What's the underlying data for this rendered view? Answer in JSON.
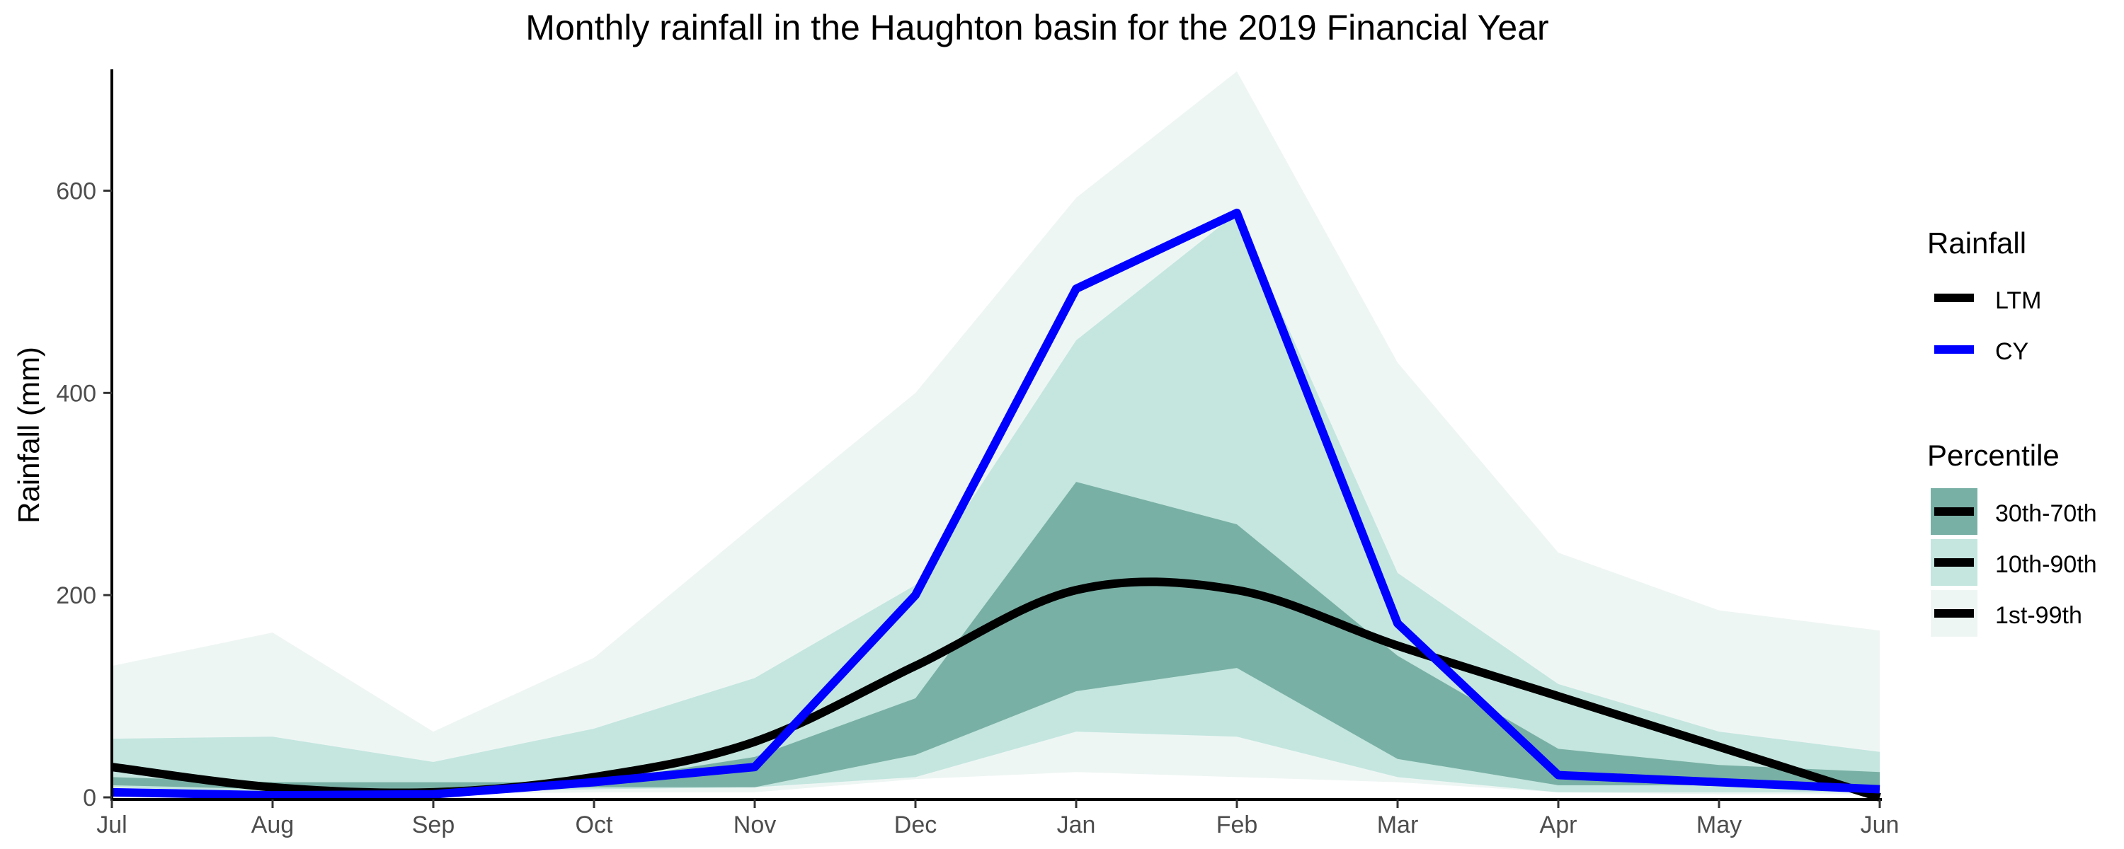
{
  "chart_data": {
    "type": "line",
    "title": "Monthly rainfall in the Haughton basin for the 2019 Financial Year",
    "xlabel": "",
    "ylabel": "Rainfall (mm)",
    "categories": [
      "Jul",
      "Aug",
      "Sep",
      "Oct",
      "Nov",
      "Dec",
      "Jan",
      "Feb",
      "Mar",
      "Apr",
      "May",
      "Jun"
    ],
    "ylim": [
      0,
      720
    ],
    "yticks": [
      0,
      200,
      400,
      600
    ],
    "grid": false,
    "legend_position": "right",
    "series": [
      {
        "name": "LTM",
        "color": "#000000",
        "values": [
          30,
          10,
          5,
          20,
          55,
          130,
          205,
          205,
          150,
          100,
          50,
          0
        ]
      },
      {
        "name": "CY",
        "color": "#0000ff",
        "values": [
          5,
          2,
          3,
          15,
          30,
          200,
          503,
          578,
          172,
          22,
          15,
          8
        ]
      }
    ],
    "bands": [
      {
        "name": "1st-99th",
        "color": "#eef6f4",
        "lower": [
          5,
          3,
          3,
          5,
          5,
          18,
          25,
          20,
          15,
          5,
          3,
          3
        ],
        "upper": [
          130,
          163,
          65,
          138,
          270,
          400,
          593,
          718,
          430,
          242,
          185,
          165
        ]
      },
      {
        "name": "10th-90th",
        "color": "#c4e6df",
        "lower": [
          10,
          5,
          5,
          8,
          10,
          20,
          65,
          60,
          20,
          5,
          5,
          5
        ],
        "upper": [
          58,
          60,
          35,
          68,
          118,
          210,
          452,
          578,
          222,
          112,
          65,
          45
        ]
      },
      {
        "name": "30th-70th",
        "color": "#79b0a5",
        "lower": [
          12,
          8,
          8,
          10,
          10,
          42,
          105,
          128,
          38,
          12,
          12,
          12
        ],
        "upper": [
          20,
          15,
          15,
          15,
          40,
          98,
          312,
          270,
          140,
          48,
          32,
          25
        ]
      }
    ],
    "legend": {
      "rainfall_title": "Rainfall",
      "rainfall_items": [
        "LTM",
        "CY"
      ],
      "percentile_title": "Percentile",
      "percentile_items": [
        "30th-70th",
        "10th-90th",
        "1st-99th"
      ]
    }
  }
}
